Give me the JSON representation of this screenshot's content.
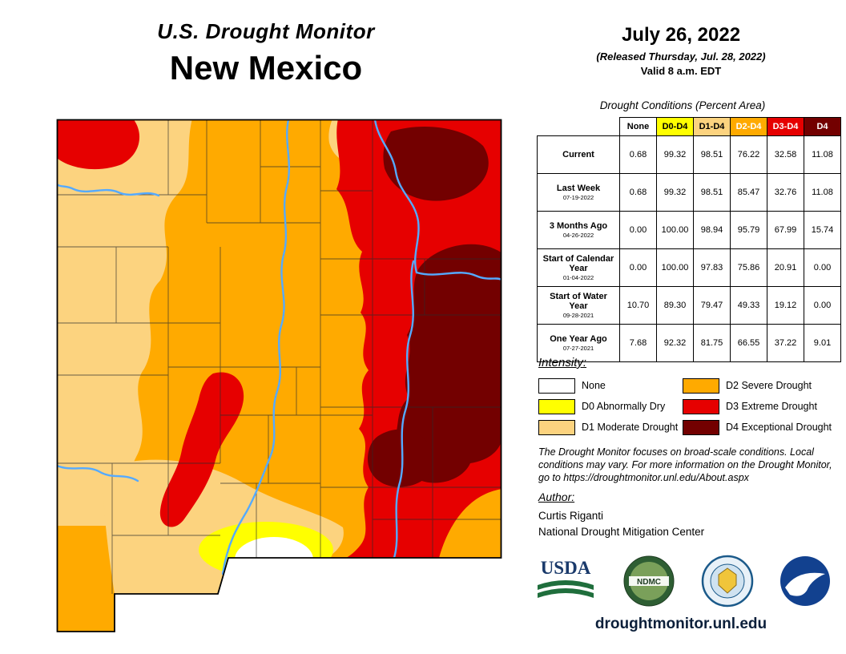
{
  "header": {
    "title_line1": "U.S. Drought Monitor",
    "title_line2": "New Mexico",
    "date": "July 26, 2022",
    "released": "(Released Thursday, Jul. 28, 2022)",
    "valid": "Valid 8 a.m. EDT"
  },
  "table": {
    "caption": "Drought Conditions (Percent Area)",
    "columns": [
      "None",
      "D0-D4",
      "D1-D4",
      "D2-D4",
      "D3-D4",
      "D4"
    ],
    "column_colors": [
      "#ffffff",
      "#ffff00",
      "#fcd37f",
      "#ffaa00",
      "#e60000",
      "#730000"
    ],
    "column_text_colors": [
      "#000000",
      "#000000",
      "#000000",
      "#ffffff",
      "#ffffff",
      "#ffffff"
    ],
    "rows": [
      {
        "label": "Current",
        "sublabel": "",
        "values": [
          "0.68",
          "99.32",
          "98.51",
          "76.22",
          "32.58",
          "11.08"
        ]
      },
      {
        "label": "Last Week",
        "sublabel": "07-19-2022",
        "values": [
          "0.68",
          "99.32",
          "98.51",
          "85.47",
          "32.76",
          "11.08"
        ]
      },
      {
        "label": "3 Months Ago",
        "sublabel": "04-26-2022",
        "values": [
          "0.00",
          "100.00",
          "98.94",
          "95.79",
          "67.99",
          "15.74"
        ]
      },
      {
        "label": "Start of Calendar Year",
        "sublabel": "01-04-2022",
        "values": [
          "0.00",
          "100.00",
          "97.83",
          "75.86",
          "20.91",
          "0.00"
        ]
      },
      {
        "label": "Start of Water Year",
        "sublabel": "09-28-2021",
        "values": [
          "10.70",
          "89.30",
          "79.47",
          "49.33",
          "19.12",
          "0.00"
        ]
      },
      {
        "label": "One Year Ago",
        "sublabel": "07-27-2021",
        "values": [
          "7.68",
          "92.32",
          "81.75",
          "66.55",
          "37.22",
          "9.01"
        ]
      }
    ]
  },
  "legend": {
    "title": "Intensity:",
    "items": [
      {
        "label": "None",
        "color": "#ffffff"
      },
      {
        "label": "D0 Abnormally Dry",
        "color": "#ffff00"
      },
      {
        "label": "D1 Moderate Drought",
        "color": "#fcd37f"
      },
      {
        "label": "D2 Severe Drought",
        "color": "#ffaa00"
      },
      {
        "label": "D3 Extreme Drought",
        "color": "#e60000"
      },
      {
        "label": "D4 Exceptional Drought",
        "color": "#730000"
      }
    ]
  },
  "disclaimer": "The Drought Monitor focuses on broad-scale conditions. Local conditions may vary. For more information on the Drought Monitor, go to https://droughtmonitor.unl.edu/About.aspx",
  "author": {
    "heading": "Author:",
    "name": "Curtis Riganti",
    "org": "National Drought Mitigation Center"
  },
  "logos": [
    {
      "id": "usda",
      "label": "USDA"
    },
    {
      "id": "ndmc",
      "label": "NDMC"
    },
    {
      "id": "university-seal",
      "label": ""
    },
    {
      "id": "noaa",
      "label": ""
    }
  ],
  "footer": {
    "url": "droughtmonitor.unl.edu"
  },
  "map": {
    "river_color": "#55aaff",
    "outline_color": "#000000"
  }
}
